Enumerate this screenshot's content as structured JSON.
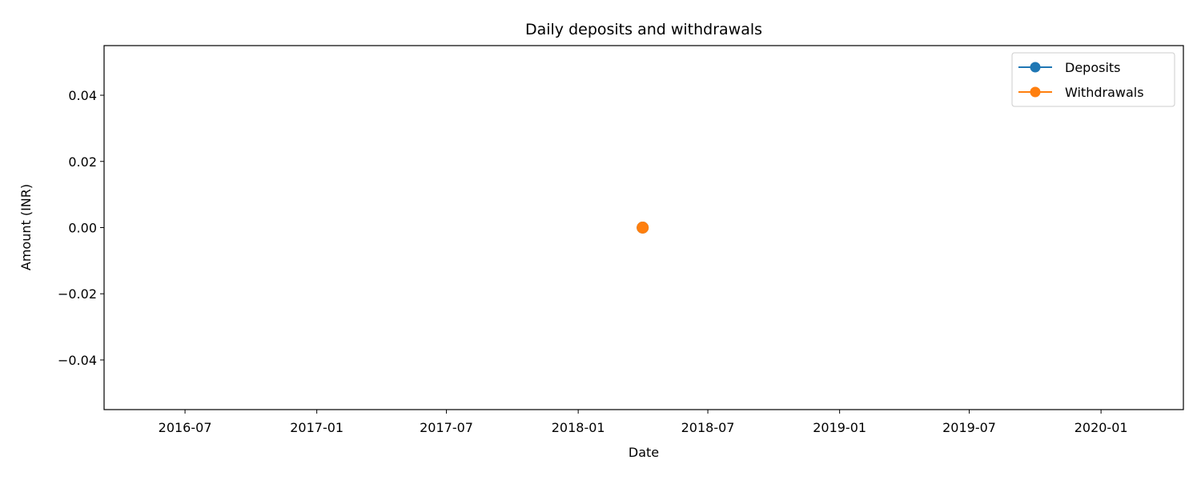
{
  "chart_data": {
    "type": "line",
    "title": "Daily deposits and withdrawals",
    "xlabel": "Date",
    "ylabel": "Amount (INR)",
    "x_type": "date",
    "xlim": [
      "2016-03-10",
      "2020-04-25"
    ],
    "ylim": [
      -0.055,
      0.055
    ],
    "x_ticks": [
      "2016-07",
      "2017-01",
      "2017-07",
      "2018-01",
      "2018-07",
      "2019-01",
      "2019-07",
      "2020-01"
    ],
    "y_ticks": [
      -0.04,
      -0.02,
      0.0,
      0.02,
      0.04
    ],
    "y_tick_labels": [
      "−0.04",
      "−0.02",
      "0.00",
      "0.02",
      "0.04"
    ],
    "grid": false,
    "legend_position": "top-right",
    "series": [
      {
        "name": "Deposits",
        "color": "#1f77b4",
        "marker": "circle",
        "x": [
          "2018-04-01"
        ],
        "y": [
          0
        ]
      },
      {
        "name": "Withdrawals",
        "color": "#ff7f0e",
        "marker": "circle",
        "x": [
          "2018-04-01"
        ],
        "y": [
          0
        ]
      }
    ]
  }
}
